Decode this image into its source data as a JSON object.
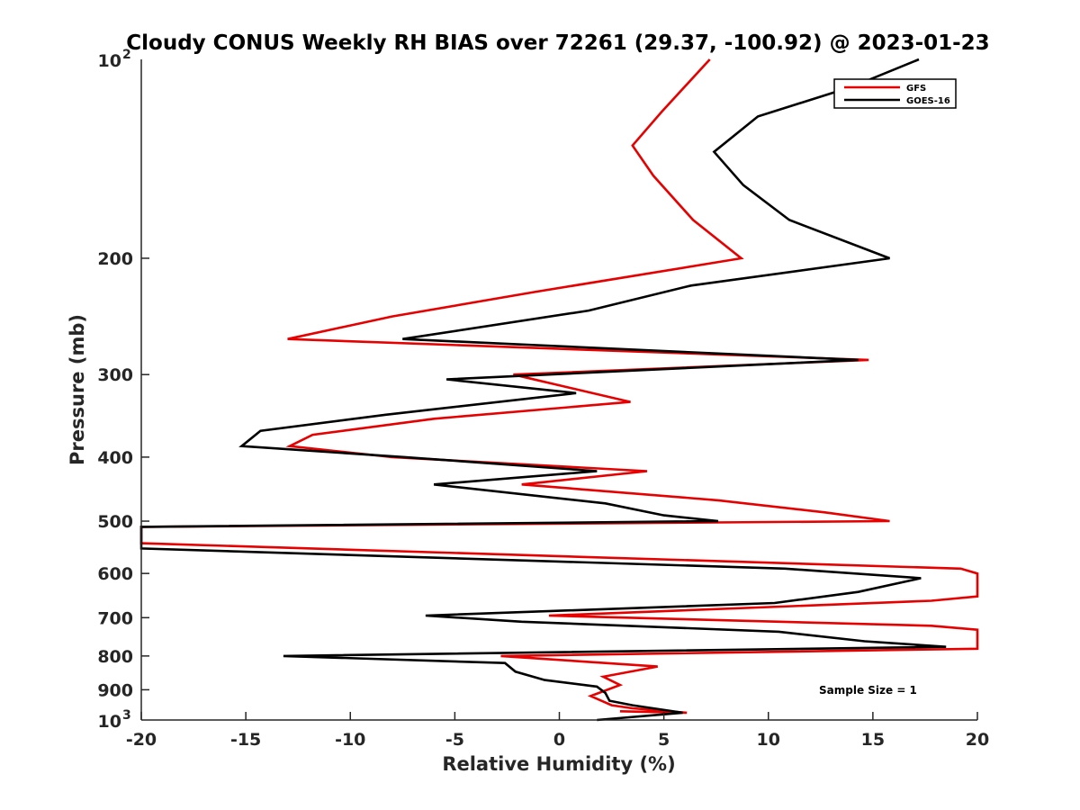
{
  "chart_data": {
    "type": "line",
    "title": "Cloudy CONUS Weekly RH BIAS over 72261 (29.37, -100.92) @ 2023-01-23",
    "xlabel": "Relative Humidity (%)",
    "ylabel": "Pressure (mb)",
    "xlim": [
      -20,
      20
    ],
    "ylim": [
      100,
      1000
    ],
    "yscale": "log",
    "y_reversed": true,
    "grid": false,
    "legend_position": "top-right",
    "annotation": "Sample Size = 1",
    "x_ticks": [
      "-20",
      "-15",
      "-10",
      "-5",
      "0",
      "5",
      "10",
      "15",
      "20"
    ],
    "x_tick_values": [
      -20,
      -15,
      -10,
      -5,
      0,
      5,
      10,
      15,
      20
    ],
    "y_ticks": [
      {
        "value": 200,
        "label": "200"
      },
      {
        "value": 300,
        "label": "300"
      },
      {
        "value": 400,
        "label": "400"
      },
      {
        "value": 500,
        "label": "500"
      },
      {
        "value": 600,
        "label": "600"
      },
      {
        "value": 700,
        "label": "700"
      },
      {
        "value": 800,
        "label": "800"
      },
      {
        "value": 900,
        "label": "900"
      }
    ],
    "y_tick_power": [
      {
        "value": 100,
        "base": "10",
        "exp": "2"
      },
      {
        "value": 1000,
        "base": "10",
        "exp": "3"
      }
    ],
    "series": [
      {
        "name": "GFS",
        "color": "#e60000",
        "points": [
          [
            7.2,
            100
          ],
          [
            4.9,
            120
          ],
          [
            3.5,
            135
          ],
          [
            4.5,
            150
          ],
          [
            6.4,
            175
          ],
          [
            8.7,
            200
          ],
          [
            -1.2,
            225
          ],
          [
            -8,
            245
          ],
          [
            -13,
            265
          ],
          [
            14.8,
            285
          ],
          [
            -2.2,
            300
          ],
          [
            3.4,
            330
          ],
          [
            -6,
            350
          ],
          [
            -11.8,
            370
          ],
          [
            -12.9,
            385
          ],
          [
            -8,
            400
          ],
          [
            4.2,
            420
          ],
          [
            -1.8,
            440
          ],
          [
            7.6,
            465
          ],
          [
            12.7,
            485
          ],
          [
            15.8,
            500
          ],
          [
            -20,
            510
          ],
          [
            -20,
            540
          ],
          [
            19.2,
            590
          ],
          [
            20,
            600
          ],
          [
            20,
            650
          ],
          [
            17.8,
            660
          ],
          [
            -0.5,
            695
          ],
          [
            17.8,
            720
          ],
          [
            20,
            730
          ],
          [
            20,
            780
          ],
          [
            -2.8,
            800
          ],
          [
            4.7,
            830
          ],
          [
            2.1,
            860
          ],
          [
            2.9,
            885
          ],
          [
            1.5,
            920
          ],
          [
            2.5,
            950
          ],
          [
            3.5,
            960
          ],
          [
            6.1,
            975
          ],
          [
            2.9,
            970
          ]
        ]
      },
      {
        "name": "GOES-16",
        "color": "#000000",
        "points": [
          [
            17.2,
            100
          ],
          [
            14,
            110
          ],
          [
            9.5,
            122
          ],
          [
            7.4,
            138
          ],
          [
            8.8,
            155
          ],
          [
            11,
            175
          ],
          [
            15.8,
            200
          ],
          [
            6.3,
            220
          ],
          [
            1.4,
            240
          ],
          [
            -7.5,
            265
          ],
          [
            14.3,
            285
          ],
          [
            -5.4,
            305
          ],
          [
            0.8,
            320
          ],
          [
            -8.3,
            345
          ],
          [
            -14.3,
            365
          ],
          [
            -15.2,
            385
          ],
          [
            -7.4,
            400
          ],
          [
            1.8,
            420
          ],
          [
            -6,
            440
          ],
          [
            2.2,
            470
          ],
          [
            5,
            490
          ],
          [
            7.6,
            500
          ],
          [
            -20,
            510
          ],
          [
            -20,
            550
          ],
          [
            10.8,
            590
          ],
          [
            17.3,
            610
          ],
          [
            14.3,
            640
          ],
          [
            10.3,
            665
          ],
          [
            -6.4,
            695
          ],
          [
            -1.8,
            710
          ],
          [
            10.5,
            735
          ],
          [
            14.6,
            760
          ],
          [
            18.5,
            775
          ],
          [
            -13.2,
            800
          ],
          [
            -2.6,
            820
          ],
          [
            -2.1,
            845
          ],
          [
            -0.7,
            870
          ],
          [
            1.8,
            890
          ],
          [
            2.2,
            910
          ],
          [
            2.4,
            935
          ],
          [
            3.5,
            950
          ],
          [
            5.9,
            975
          ],
          [
            1.8,
            1000
          ]
        ]
      }
    ]
  }
}
